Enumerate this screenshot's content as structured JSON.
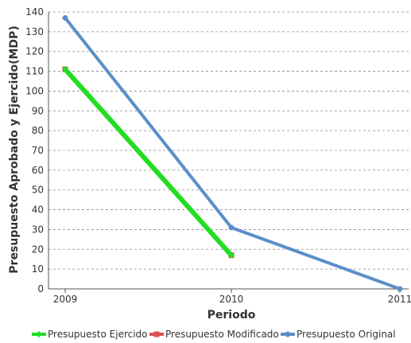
{
  "chart_data": {
    "type": "line",
    "title": "",
    "xlabel": "Periodo",
    "ylabel": "Presupuesto Aprobado y Ejercido(MDP)",
    "categories": [
      "2009",
      "2010",
      "2011"
    ],
    "ylim": [
      0,
      140
    ],
    "yticks": [
      0,
      10,
      20,
      30,
      40,
      50,
      60,
      70,
      80,
      90,
      100,
      110,
      120,
      130,
      140
    ],
    "grid": "horizontal dashed",
    "legend_position": "bottom",
    "series": [
      {
        "name": "Presupuesto Ejercido",
        "values": [
          111,
          17,
          null
        ],
        "color": "#22dd22",
        "marker": "diamond"
      },
      {
        "name": "Presupuesto Modificado",
        "values": [
          111,
          17,
          null
        ],
        "color": "#d9534f",
        "marker": "square"
      },
      {
        "name": "Presupuesto Original",
        "values": [
          137,
          31,
          0
        ],
        "color": "#5b8fc9",
        "marker": "circle"
      }
    ]
  }
}
